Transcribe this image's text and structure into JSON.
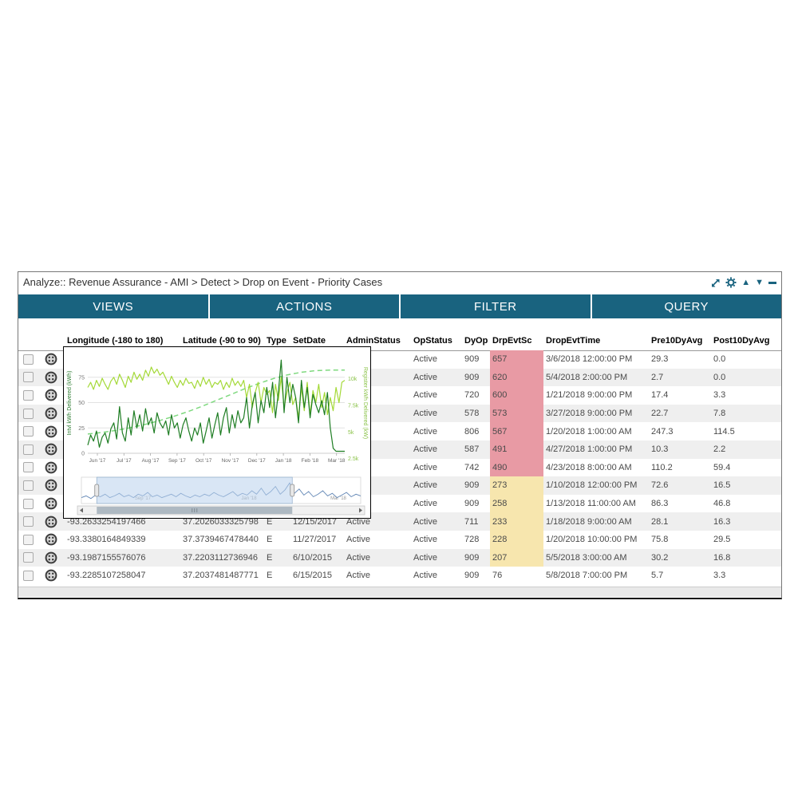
{
  "panel": {
    "title": "Analyze:: Revenue Assurance - AMI > Detect > Drop on Event - Priority Cases",
    "icons": {
      "up": "▲",
      "down": "▼"
    }
  },
  "tabs": [
    {
      "label": "VIEWS"
    },
    {
      "label": "ACTIONS"
    },
    {
      "label": "FILTER"
    },
    {
      "label": "QUERY"
    }
  ],
  "colors": {
    "accent": "#19637f",
    "cell_text": "#4a4a4a",
    "row_alt": "#efefef",
    "highlight_red": "#e89aa4",
    "highlight_yellow": "#f7e6ae"
  },
  "table": {
    "columns": [
      "Longitude (-180 to 180)",
      "Latitude (-90 to 90)",
      "Type",
      "SetDate",
      "AdminStatus",
      "OpStatus",
      "DyOp",
      "DrpEvtSc",
      "DropEvtTime",
      "Pre10DyAvg",
      "Post10DyAvg"
    ],
    "rows": [
      {
        "longitude": "",
        "latitude": "",
        "type": "",
        "set_date": "",
        "admin_status": "",
        "op_status": "Active",
        "dy_op": "909",
        "drp_evt_sc": "657",
        "drp_level": "red",
        "drop_evt_time": "3/6/2018 12:00:00 PM",
        "pre10": "29.3",
        "post10": "0.0"
      },
      {
        "longitude": "",
        "latitude": "",
        "type": "",
        "set_date": "",
        "admin_status": "",
        "op_status": "Active",
        "dy_op": "909",
        "drp_evt_sc": "620",
        "drp_level": "red",
        "drop_evt_time": "5/4/2018 2:00:00 PM",
        "pre10": "2.7",
        "post10": "0.0"
      },
      {
        "longitude": "",
        "latitude": "",
        "type": "",
        "set_date": "",
        "admin_status": "",
        "op_status": "Active",
        "dy_op": "720",
        "drp_evt_sc": "600",
        "drp_level": "red",
        "drop_evt_time": "1/21/2018 9:00:00 PM",
        "pre10": "17.4",
        "post10": "3.3"
      },
      {
        "longitude": "",
        "latitude": "",
        "type": "",
        "set_date": "",
        "admin_status": "",
        "op_status": "Active",
        "dy_op": "578",
        "drp_evt_sc": "573",
        "drp_level": "red",
        "drop_evt_time": "3/27/2018 9:00:00 PM",
        "pre10": "22.7",
        "post10": "7.8"
      },
      {
        "longitude": "",
        "latitude": "",
        "type": "",
        "set_date": "",
        "admin_status": "",
        "op_status": "Active",
        "dy_op": "806",
        "drp_evt_sc": "567",
        "drp_level": "red",
        "drop_evt_time": "1/20/2018 1:00:00 AM",
        "pre10": "247.3",
        "post10": "114.5"
      },
      {
        "longitude": "",
        "latitude": "",
        "type": "",
        "set_date": "",
        "admin_status": "",
        "op_status": "Active",
        "dy_op": "587",
        "drp_evt_sc": "491",
        "drp_level": "red",
        "drop_evt_time": "4/27/2018 1:00:00 PM",
        "pre10": "10.3",
        "post10": "2.2"
      },
      {
        "longitude": "",
        "latitude": "",
        "type": "",
        "set_date": "",
        "admin_status": "",
        "op_status": "Active",
        "dy_op": "742",
        "drp_evt_sc": "490",
        "drp_level": "red",
        "drop_evt_time": "4/23/2018 8:00:00 AM",
        "pre10": "110.2",
        "post10": "59.4"
      },
      {
        "longitude": "",
        "latitude": "",
        "type": "",
        "set_date": "",
        "admin_status": "",
        "op_status": "Active",
        "dy_op": "909",
        "drp_evt_sc": "273",
        "drp_level": "yellow",
        "drop_evt_time": "1/10/2018 12:00:00 PM",
        "pre10": "72.6",
        "post10": "16.5"
      },
      {
        "longitude": "",
        "latitude": "",
        "type": "",
        "set_date": "",
        "admin_status": "",
        "op_status": "Active",
        "dy_op": "909",
        "drp_evt_sc": "258",
        "drp_level": "yellow",
        "drop_evt_time": "1/13/2018 11:00:00 AM",
        "pre10": "86.3",
        "post10": "46.8"
      },
      {
        "longitude": "-93.2633254197466",
        "latitude": "37.2026033325798",
        "type": "E",
        "set_date": "12/15/2017",
        "admin_status": "Active",
        "op_status": "Active",
        "dy_op": "711",
        "drp_evt_sc": "233",
        "drp_level": "yellow",
        "drop_evt_time": "1/18/2018 9:00:00 AM",
        "pre10": "28.1",
        "post10": "16.3"
      },
      {
        "longitude": "-93.3380164849339",
        "latitude": "37.3739467478440",
        "type": "E",
        "set_date": "11/27/2017",
        "admin_status": "Active",
        "op_status": "Active",
        "dy_op": "728",
        "drp_evt_sc": "228",
        "drp_level": "yellow",
        "drop_evt_time": "1/20/2018 10:00:00 PM",
        "pre10": "75.8",
        "post10": "29.5"
      },
      {
        "longitude": "-93.1987155576076",
        "latitude": "37.2203112736946",
        "type": "E",
        "set_date": "6/10/2015",
        "admin_status": "Active",
        "op_status": "Active",
        "dy_op": "909",
        "drp_evt_sc": "207",
        "drp_level": "yellow",
        "drop_evt_time": "5/5/2018 3:00:00 AM",
        "pre10": "30.2",
        "post10": "16.8"
      },
      {
        "longitude": "-93.2285107258047",
        "latitude": "37.2037481487771",
        "type": "E",
        "set_date": "6/15/2015",
        "admin_status": "Active",
        "op_status": "Active",
        "dy_op": "909",
        "drp_evt_sc": "76",
        "drp_level": "none",
        "drop_evt_time": "5/8/2018 7:00:00 PM",
        "pre10": "5.7",
        "post10": "3.3"
      }
    ]
  },
  "chart_data": {
    "type": "line",
    "title": "",
    "x_labels": [
      "Jun '17",
      "Jul '17",
      "Aug '17",
      "Sep '17",
      "Oct '17",
      "Nov '17",
      "Dec '17",
      "Jan '18",
      "Feb '18",
      "Mar '18"
    ],
    "left_axis": {
      "label": "Intvl kWh Delivered (kWh)",
      "ticks": [
        0,
        25,
        50,
        75
      ],
      "domain": [
        0,
        100
      ],
      "color": "#2e7d32",
      "tick_color": "#777777"
    },
    "right_axis": {
      "label": "Register kWh Delivered (kW)",
      "tick_labels": [
        "2.5k",
        "5k",
        "7.5k",
        "10k"
      ],
      "tick_values": [
        2500,
        5000,
        7500,
        10000
      ],
      "domain": [
        3000,
        12500
      ],
      "color": "#8bc34a"
    },
    "series": [
      {
        "name": "Register kWh Delivered (kW)",
        "axis": "right",
        "style": "dashed",
        "color": "#7fd97f",
        "values": [
          4800,
          4950,
          5150,
          5400,
          5700,
          6050,
          6450,
          6900,
          7400,
          7950,
          8500,
          9050,
          9550,
          10000,
          10350,
          10600,
          10750,
          10800,
          10800
        ]
      },
      {
        "name": "Register Intvl kWh Delivered",
        "axis": "left",
        "style": "solid",
        "color": "#a4d938",
        "values": [
          65,
          70,
          63,
          72,
          66,
          74,
          68,
          63,
          71,
          75,
          68,
          78,
          72,
          65,
          76,
          70,
          80,
          73,
          78,
          72,
          82,
          76,
          85,
          79,
          83,
          77,
          80,
          74,
          68,
          76,
          70,
          65,
          72,
          67,
          74,
          69,
          70,
          64,
          72,
          66,
          75,
          68,
          73,
          65,
          70,
          68,
          72,
          63,
          70,
          65,
          74,
          67,
          71,
          66,
          72,
          55,
          68,
          45,
          60,
          70,
          50,
          65,
          58,
          62,
          40,
          68,
          52,
          75,
          45,
          60,
          70,
          48,
          55,
          35,
          65,
          42,
          70,
          38,
          62,
          50,
          68,
          45,
          60,
          38,
          55,
          42,
          65,
          50,
          70,
          72
        ]
      },
      {
        "name": "Intvl kWh Delivered (kWh)",
        "axis": "left",
        "style": "solid",
        "color": "#1e7d23",
        "values": [
          8,
          18,
          12,
          22,
          6,
          16,
          20,
          10,
          24,
          30,
          14,
          46,
          20,
          12,
          35,
          18,
          42,
          25,
          38,
          22,
          44,
          28,
          35,
          20,
          40,
          30,
          25,
          32,
          18,
          38,
          25,
          30,
          15,
          28,
          35,
          22,
          12,
          25,
          18,
          30,
          10,
          22,
          35,
          15,
          28,
          40,
          18,
          35,
          45,
          20,
          38,
          25,
          42,
          30,
          35,
          55,
          25,
          48,
          60,
          30,
          52,
          40,
          65,
          45,
          70,
          35,
          60,
          92,
          40,
          75,
          50,
          68,
          55,
          30,
          72,
          45,
          65,
          35,
          58,
          48,
          40,
          52,
          38,
          60,
          25,
          5,
          2,
          2,
          2,
          2
        ]
      }
    ],
    "navigator": {
      "color": "#6186b5",
      "values": [
        5,
        7,
        4,
        8,
        6,
        9,
        5,
        7,
        10,
        6,
        8,
        5,
        9,
        7,
        11,
        6,
        8,
        5,
        7,
        9,
        6,
        10,
        7,
        5,
        8,
        6,
        9,
        7,
        11,
        8,
        6,
        9,
        12,
        7,
        10,
        8,
        13,
        9,
        16,
        8,
        12,
        18,
        9,
        14,
        22,
        10,
        15,
        8,
        12,
        6,
        9,
        13,
        7,
        10,
        5,
        8,
        11,
        6,
        9,
        7
      ],
      "selection": [
        0.055,
        0.755
      ],
      "labels": [
        {
          "text": "Sep '17",
          "pos": 0.22
        },
        {
          "text": "Jan '18",
          "pos": 0.6
        },
        {
          "text": "Mar '18",
          "pos": 0.92
        }
      ]
    }
  }
}
